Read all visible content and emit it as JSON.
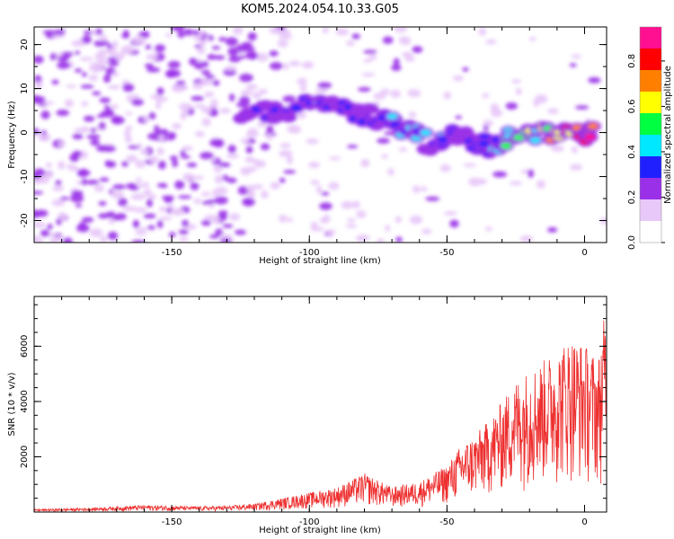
{
  "chart_data": [
    {
      "type": "heatmap",
      "title": "KOM5.2024.054.10.33.G05",
      "xlabel": "Height of straight line (km)",
      "ylabel": "Frequency (Hz)",
      "xlim": [
        -200,
        8
      ],
      "ylim": [
        -25,
        24
      ],
      "x_ticks": [
        -150,
        -100,
        -50,
        0
      ],
      "y_ticks": [
        -20,
        -10,
        0,
        10,
        20
      ],
      "colorbar": {
        "label": "Normalized spectral amplitude",
        "range": [
          0,
          0.95
        ],
        "ticks": [
          "0.0",
          "0.2",
          "0.4",
          "0.6",
          "0.8"
        ],
        "colors": [
          "#ffffff",
          "#e8c8f8",
          "#9a30e8",
          "#2020ff",
          "#00e8ff",
          "#00ff40",
          "#ffff00",
          "#ff8000",
          "#ff0000",
          "#ff1090"
        ]
      },
      "ridge": [
        [
          -125,
          5
        ],
        [
          -115,
          5
        ],
        [
          -110,
          4
        ],
        [
          -100,
          8
        ],
        [
          -95,
          7
        ],
        [
          -90,
          5
        ],
        [
          -85,
          6
        ],
        [
          -80,
          4
        ],
        [
          -75,
          3
        ],
        [
          -70,
          3
        ],
        [
          -65,
          1
        ],
        [
          -60,
          -1
        ],
        [
          -55,
          -3
        ],
        [
          -50,
          -1
        ],
        [
          -45,
          -1
        ],
        [
          -40,
          -2
        ],
        [
          -35,
          -3
        ],
        [
          -30,
          -2
        ],
        [
          -25,
          -1
        ],
        [
          -20,
          -1
        ],
        [
          -15,
          0
        ],
        [
          -10,
          0
        ],
        [
          -5,
          1
        ],
        [
          0,
          0
        ],
        [
          5,
          0
        ]
      ],
      "ridge_amplitude": [
        0.25,
        0.3,
        0.3,
        0.35,
        0.35,
        0.3,
        0.35,
        0.3,
        0.3,
        0.4,
        0.45,
        0.4,
        0.35,
        0.35,
        0.3,
        0.3,
        0.35,
        0.45,
        0.5,
        0.55,
        0.6,
        0.7,
        0.75,
        0.85,
        0.9
      ],
      "grid": false
    },
    {
      "type": "line",
      "title": "",
      "xlabel": "Height of straight line (km)",
      "ylabel": "SNR (10 * v/v)",
      "xlim": [
        -200,
        8
      ],
      "ylim": [
        0,
        7800
      ],
      "x_ticks": [
        -150,
        -100,
        -50,
        0
      ],
      "y_ticks": [
        2000,
        4000,
        6000
      ],
      "series": [
        {
          "color": "#ee3030",
          "envelope": {
            "x": [
              -200,
              -180,
              -160,
              -140,
              -130,
              -120,
              -110,
              -100,
              -90,
              -80,
              -70,
              -60,
              -50,
              -45,
              -40,
              -35,
              -30,
              -25,
              -20,
              -15,
              -10,
              -5,
              0,
              5,
              8
            ],
            "y": [
              100,
              150,
              250,
              200,
              220,
              300,
              500,
              700,
              900,
              1400,
              900,
              1100,
              1700,
              2400,
              2800,
              3300,
              4000,
              4800,
              5200,
              5500,
              5900,
              6400,
              6100,
              5600,
              7700
            ]
          }
        }
      ],
      "grid": false
    }
  ]
}
